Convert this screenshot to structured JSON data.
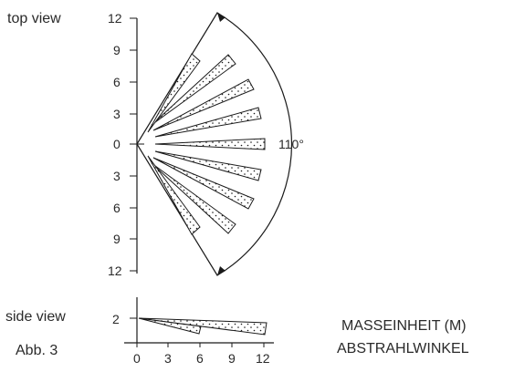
{
  "labels": {
    "top_view": "top view",
    "side_view": "side view",
    "figure": "Abb. 3",
    "unit": "MASSEINHEIT (M)",
    "angle_label": "ABSTRAHLWINKEL",
    "angle_value": "110°"
  },
  "top_view_axis": {
    "ticks": [
      "12",
      "9",
      "6",
      "3",
      "0",
      "3",
      "6",
      "9",
      "12"
    ]
  },
  "side_view_axis": {
    "y_tick": "2",
    "x_ticks": [
      "0",
      "3",
      "6",
      "9",
      "12"
    ]
  },
  "colors": {
    "line": "#1a1a1a",
    "text": "#2a2a2a",
    "background": "#ffffff"
  }
}
